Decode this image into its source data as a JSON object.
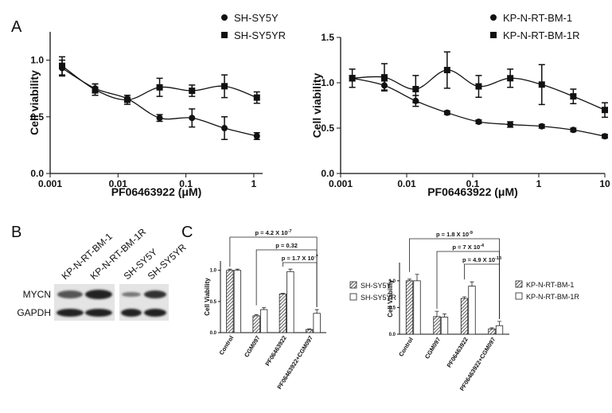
{
  "panel_labels": [
    "A",
    "B",
    "C"
  ],
  "blot": {
    "lanes": [
      "KP-N-RT-BM-1",
      "KP-N-RT-BM-1R",
      "SH-SY5Y",
      "SH-SY5YR"
    ],
    "rows": [
      "MYCN",
      "GAPDH"
    ]
  },
  "chart_data": [
    {
      "type": "scatter",
      "xlog": true,
      "legend": "upper right",
      "xlabel": "PF06463922 (μM)",
      "ylabel": "Cell viability",
      "x": [
        0.0015,
        0.0046,
        0.0137,
        0.041,
        0.123,
        0.37,
        1.11
      ],
      "xlim": [
        0.001,
        1.35
      ],
      "xticks": [
        0.001,
        0.01,
        0.1,
        1
      ],
      "ylim": [
        0,
        1.25
      ],
      "yticks": [
        {
          "value": 0,
          "label": "0.0"
        },
        0.5,
        {
          "value": 1,
          "label": "1.0"
        }
      ],
      "series": [
        {
          "name": "SH-SY5Y",
          "marker": "circle",
          "color": "#111111",
          "values": [
            0.93,
            0.75,
            0.66,
            0.49,
            0.49,
            0.4,
            0.33
          ],
          "errors": [
            0.07,
            0.04,
            0.03,
            0.03,
            0.08,
            0.1,
            0.03
          ]
        },
        {
          "name": "SH-SY5YR",
          "marker": "square",
          "color": "#111111",
          "values": [
            0.95,
            0.74,
            0.65,
            0.76,
            0.73,
            0.77,
            0.67
          ],
          "errors": [
            0.08,
            0.05,
            0.04,
            0.08,
            0.05,
            0.1,
            0.05
          ]
        }
      ]
    },
    {
      "type": "scatter",
      "xlog": true,
      "legend": "upper right",
      "xlabel": "PF06463922 (μM)",
      "ylabel": "Cell viability",
      "x": [
        0.0015,
        0.0046,
        0.0137,
        0.041,
        0.123,
        0.37,
        1.11,
        3.33,
        10
      ],
      "xlim": [
        0.001,
        10
      ],
      "xticks": [
        0.001,
        0.01,
        0.1,
        1,
        10
      ],
      "ylim": [
        0,
        1.5
      ],
      "yticks": [
        {
          "value": 0,
          "label": "0.0"
        },
        0.5,
        {
          "value": 1,
          "label": "1.0"
        },
        1.5
      ],
      "series": [
        {
          "name": "KP-N-RT-BM-1",
          "marker": "circle",
          "color": "#111111",
          "values": [
            1.05,
            0.97,
            0.8,
            0.67,
            0.57,
            0.54,
            0.52,
            0.48,
            0.41
          ],
          "errors": [
            0.03,
            0.05,
            0.06,
            0.02,
            0.02,
            0.03,
            0.02,
            0.02,
            0.02
          ]
        },
        {
          "name": "KP-N-RT-BM-1R",
          "marker": "square",
          "color": "#111111",
          "values": [
            1.05,
            1.06,
            0.93,
            1.14,
            0.96,
            1.05,
            0.98,
            0.85,
            0.7
          ],
          "errors": [
            0.1,
            0.15,
            0.15,
            0.2,
            0.12,
            0.1,
            0.22,
            0.08,
            0.08
          ]
        }
      ]
    },
    {
      "type": "bar",
      "legend": "right",
      "ylabel": "Cell Viability",
      "categories": [
        "Control",
        "CGM097",
        "PF06463922",
        "PF06463922+CGM097"
      ],
      "ylim": [
        0,
        1.15
      ],
      "yticks": [
        {
          "value": 0,
          "label": "0.0"
        },
        0.5,
        {
          "value": 1,
          "label": "1.0"
        }
      ],
      "series": [
        {
          "name": "SH-SY5Y",
          "color": "#444444",
          "hatch": true,
          "values": [
            1.0,
            0.27,
            0.62,
            0.05
          ],
          "errors": [
            0.02,
            0.02,
            0.01,
            0.01
          ]
        },
        {
          "name": "SH-SY5YR",
          "color": "#ffffff",
          "hatch": false,
          "values": [
            1.0,
            0.37,
            0.98,
            0.31
          ],
          "errors": [
            0.02,
            0.03,
            0.04,
            0.06
          ]
        }
      ],
      "annotations": [
        {
          "text": "p = 4.2 X 10",
          "sup": "-7"
        },
        {
          "text": "p = 0.32"
        },
        {
          "text": "p = 1.7 X 10",
          "sup": "-7"
        }
      ]
    },
    {
      "type": "bar",
      "legend": "right",
      "ylabel": "Cell Viability",
      "categories": [
        "Control",
        "CGM097",
        "PF06463922",
        "PF06463922+CGM097"
      ],
      "ylim": [
        0,
        1.34
      ],
      "yticks": [
        {
          "value": 0,
          "label": "0.0"
        },
        0.5,
        {
          "value": 1,
          "label": "1.0"
        }
      ],
      "series": [
        {
          "name": "KP-N-RT-BM-1",
          "color": "#444444",
          "hatch": true,
          "values": [
            1.0,
            0.33,
            0.67,
            0.1
          ],
          "errors": [
            0.03,
            0.1,
            0.03,
            0.02
          ]
        },
        {
          "name": "KP-N-RT-BM-1R",
          "color": "#ffffff",
          "hatch": false,
          "values": [
            1.0,
            0.32,
            0.9,
            0.16
          ],
          "errors": [
            0.12,
            0.06,
            0.08,
            0.08
          ]
        }
      ],
      "annotations": [
        {
          "text": "p = 1.8 X 10",
          "sup": "-9"
        },
        {
          "text": "p = 7 X 10",
          "sup": "-4"
        },
        {
          "text": "p = 4.9 X 10",
          "sup": "-13"
        }
      ]
    }
  ]
}
